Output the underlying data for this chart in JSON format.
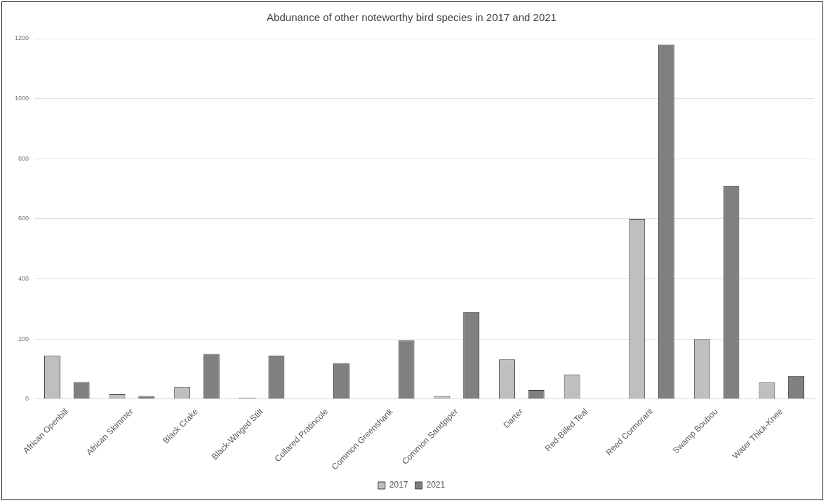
{
  "chart_data": {
    "type": "bar",
    "title": "Abdunance of other noteworthy bird species in 2017 and 2021",
    "categories": [
      "African Openbill",
      "African Skimmer",
      "Black Crake",
      "Black-Winged Stilt",
      "Collared Pratincole",
      "Common Greenshank",
      "Common Sandpiper",
      "Darter",
      "Red-Billed Teal",
      "Reed Cormorant",
      "Swamp Boubou",
      "Water Thick-Knee"
    ],
    "series": [
      {
        "name": "2017",
        "color": "#bfbfbf",
        "values": [
          145,
          16,
          40,
          5,
          0,
          0,
          10,
          132,
          82,
          600,
          200,
          55
        ]
      },
      {
        "name": "2021",
        "color": "#808080",
        "values": [
          57,
          10,
          150,
          145,
          120,
          195,
          290,
          30,
          0,
          1180,
          710,
          77
        ]
      }
    ],
    "ylim": [
      0,
      1200
    ],
    "yticks": [
      0,
      200,
      400,
      600,
      800,
      1000,
      1200
    ],
    "grid": "y",
    "legend": "bottom"
  }
}
